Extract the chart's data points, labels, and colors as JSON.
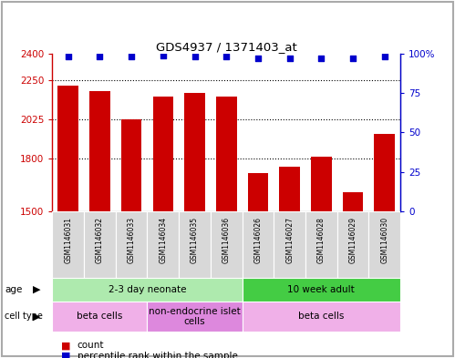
{
  "title": "GDS4937 / 1371403_at",
  "samples": [
    "GSM1146031",
    "GSM1146032",
    "GSM1146033",
    "GSM1146034",
    "GSM1146035",
    "GSM1146036",
    "GSM1146026",
    "GSM1146027",
    "GSM1146028",
    "GSM1146029",
    "GSM1146030"
  ],
  "counts": [
    2220,
    2185,
    2025,
    2155,
    2175,
    2155,
    1720,
    1755,
    1810,
    1610,
    1940
  ],
  "percentiles": [
    98,
    98,
    98,
    99,
    98,
    98,
    97,
    97,
    97,
    97,
    98
  ],
  "ylim_left": [
    1500,
    2400
  ],
  "ylim_right": [
    0,
    100
  ],
  "yticks_left": [
    1500,
    1800,
    2025,
    2250,
    2400
  ],
  "yticks_right": [
    0,
    25,
    50,
    75,
    100
  ],
  "bar_color": "#cc0000",
  "dot_color": "#0000cc",
  "age_groups": [
    {
      "label": "2-3 day neonate",
      "start": 0,
      "end": 6,
      "color": "#aeeaae"
    },
    {
      "label": "10 week adult",
      "start": 6,
      "end": 11,
      "color": "#44cc44"
    }
  ],
  "cell_type_groups": [
    {
      "label": "beta cells",
      "start": 0,
      "end": 3,
      "color": "#f0b0e8"
    },
    {
      "label": "non-endocrine islet\ncells",
      "start": 3,
      "end": 6,
      "color": "#dd88dd"
    },
    {
      "label": "beta cells",
      "start": 6,
      "end": 11,
      "color": "#f0b0e8"
    }
  ],
  "legend_red_label": "count",
  "legend_blue_label": "percentile rank within the sample",
  "bar_color_legend": "#cc0000",
  "dot_color_legend": "#0000cc",
  "grid_lines": [
    1800,
    2025,
    2250
  ],
  "border_color": "#aaaaaa"
}
